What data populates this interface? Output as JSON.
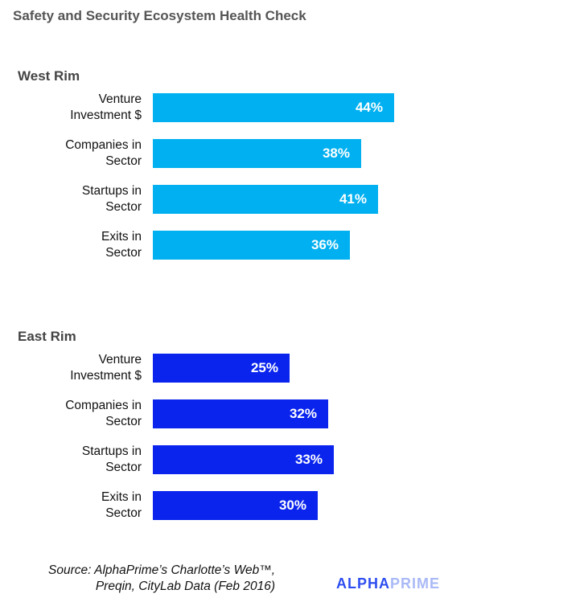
{
  "chart_data": {
    "type": "bar",
    "orientation": "horizontal",
    "title": "Safety and Security Ecosystem Health Check",
    "categories": [
      "Venture\nInvestment $",
      "Companies in\nSector",
      "Startups in\nSector",
      "Exits in\nSector"
    ],
    "series": [
      {
        "name": "West Rim",
        "values": [
          44,
          38,
          41,
          36
        ],
        "labels": [
          "44%",
          "38%",
          "41%",
          "36%"
        ],
        "color": "#00B0F0"
      },
      {
        "name": "East Rim",
        "values": [
          25,
          32,
          33,
          30
        ],
        "labels": [
          "25%",
          "32%",
          "33%",
          "30%"
        ],
        "color": "#0A24EE"
      }
    ],
    "value_unit": "%",
    "xlim": [
      0,
      100
    ],
    "grid": false,
    "legend": "none"
  },
  "source": "Source: AlphaPrime’s Charlotte’s Web™, Preqin, CityLab Data (Feb 2016)",
  "logo": {
    "part1": "ALPHA",
    "part2": "PRIME",
    "color1": "#2E4DF0",
    "color2": "#A9B9F7"
  }
}
